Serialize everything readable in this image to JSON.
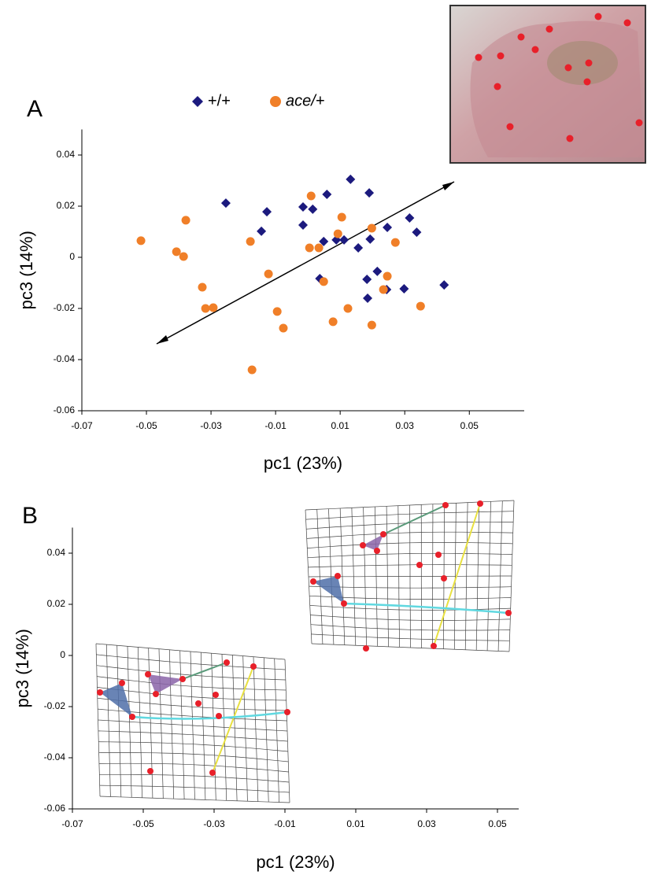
{
  "chart_data": [
    {
      "type": "scatter",
      "panel_label": "A",
      "x_label": "pc1 (23%)",
      "y_label": "pc3 (14%)",
      "xlim": [
        -0.07,
        0.067
      ],
      "ylim": [
        -0.06,
        0.05
      ],
      "xticks": [
        -0.07,
        -0.05,
        -0.03,
        -0.01,
        0.01,
        0.03,
        0.05
      ],
      "yticks": [
        -0.06,
        -0.04,
        -0.02,
        0,
        0.02,
        0.04
      ],
      "series": [
        {
          "name": "+/+",
          "color": "#1c1a7e",
          "marker": "diamond",
          "x": [
            -0.0254,
            -0.0127,
            -0.0144,
            -0.0015,
            0.0015,
            -0.0015,
            0.0059,
            0.0132,
            0.019,
            0.0049,
            0.0088,
            0.0112,
            0.0156,
            0.0193,
            0.0246,
            0.0315,
            0.0337,
            0.0037,
            0.0183,
            0.0215,
            0.0185,
            0.0244,
            0.0298,
            0.0422
          ],
          "y": [
            0.0212,
            0.0178,
            0.0102,
            0.0197,
            0.0188,
            0.0126,
            0.0246,
            0.0305,
            0.0252,
            0.0062,
            0.0068,
            0.0068,
            0.0037,
            0.0071,
            0.0117,
            0.0154,
            0.0098,
            -0.0083,
            -0.0086,
            -0.0055,
            -0.016,
            -0.0126,
            -0.0123,
            -0.0108
          ]
        },
        {
          "name": "ace/+",
          "color": "#f07f28",
          "marker": "circle",
          "x": [
            -0.0517,
            -0.0407,
            -0.0385,
            -0.0378,
            -0.0327,
            -0.0317,
            -0.0293,
            -0.0178,
            -0.0122,
            -0.0095,
            -0.0076,
            -0.0173,
            0.001,
            0.0005,
            0.0034,
            0.0049,
            0.0105,
            0.0093,
            0.0198,
            0.0078,
            0.0124,
            0.0198,
            0.0246,
            0.0234,
            0.0271,
            0.0349
          ],
          "y": [
            0.0065,
            0.0022,
            0.0003,
            0.0145,
            -0.0117,
            -0.02,
            -0.0197,
            0.0062,
            -0.0065,
            -0.0212,
            -0.0277,
            -0.044,
            0.024,
            0.0037,
            0.0037,
            -0.0095,
            0.0157,
            0.0092,
            0.0114,
            -0.0252,
            -0.02,
            -0.0265,
            -0.0074,
            -0.0126,
            0.0058,
            -0.0191
          ]
        }
      ]
    },
    {
      "type": "deformation",
      "panel_label": "B",
      "x_label": "pc1 (23%)",
      "y_label": "pc3 (14%)",
      "xlim": [
        -0.07,
        0.056
      ],
      "ylim": [
        -0.06,
        0.05
      ],
      "xticks": [
        -0.07,
        -0.05,
        -0.03,
        -0.01,
        0.01,
        0.03,
        0.05
      ],
      "yticks": [
        -0.06,
        -0.04,
        -0.02,
        0,
        0.02,
        0.04
      ]
    }
  ]
}
